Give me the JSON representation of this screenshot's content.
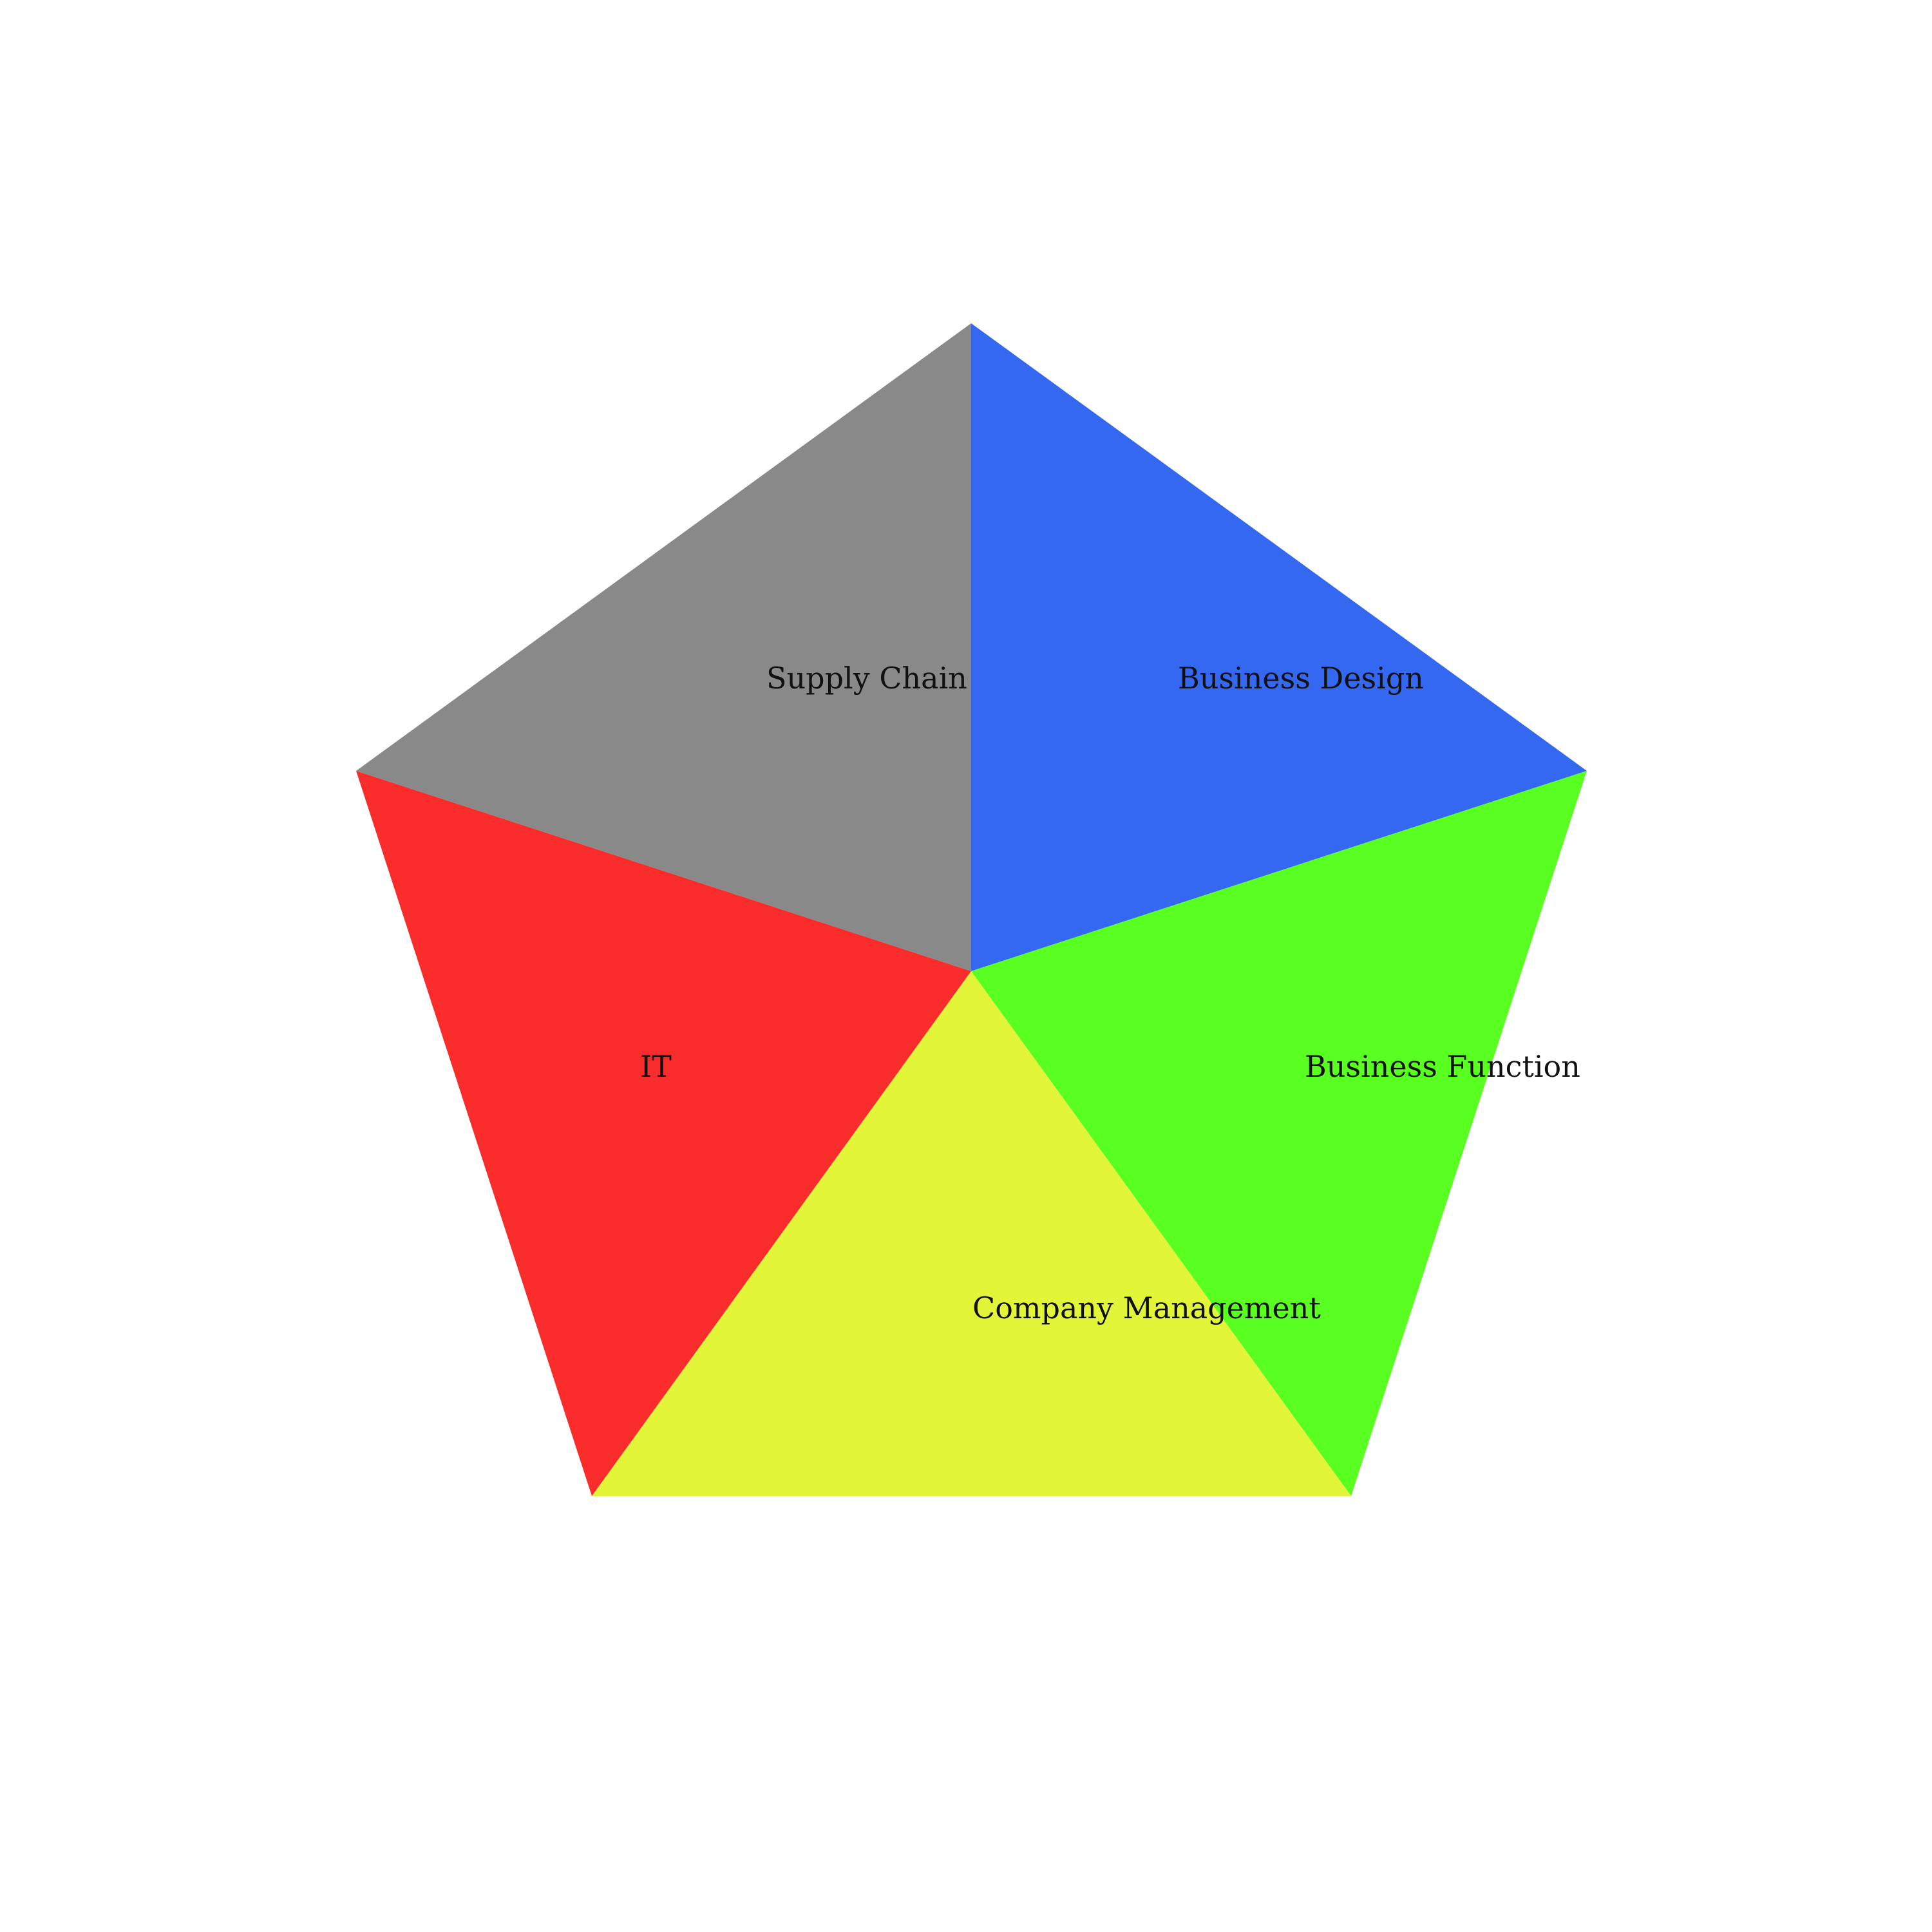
{
  "diagram": {
    "segments": [
      {
        "label": "Business Design",
        "color": "#3568F1"
      },
      {
        "label": "Business Function",
        "color": "#5AFF22"
      },
      {
        "label": "Company Management",
        "color": "#E2F538"
      },
      {
        "label": "IT",
        "color": "#F92C2C"
      },
      {
        "label": "Supply Chain",
        "color": "#898989"
      }
    ]
  }
}
